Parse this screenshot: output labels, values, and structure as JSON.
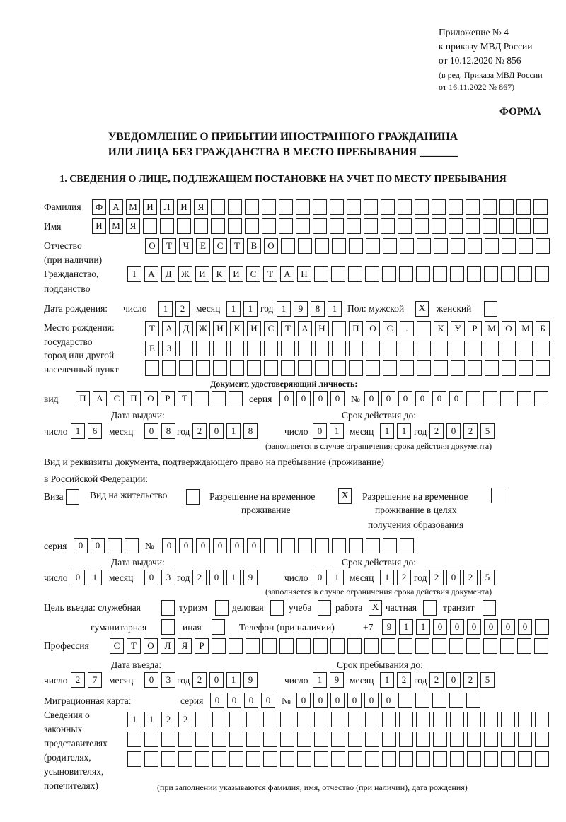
{
  "header": {
    "appendix": "Приложение № 4",
    "order": "к приказу МВД России",
    "order_date": "от 10.12.2020 № 856",
    "revision_1": "(в ред. Приказа МВД России",
    "revision_2": "от 16.11.2022 № 867)",
    "form_label": "ФОРМА",
    "title_1": "УВЕДОМЛЕНИЕ О ПРИБЫТИИ ИНОСТРАННОГО ГРАЖДАНИНА",
    "title_2": "ИЛИ ЛИЦА БЕЗ ГРАЖДАНСТВА В МЕСТО ПРЕБЫВАНИЯ _______",
    "section_1": "1. СВЕДЕНИЯ О ЛИЦЕ, ПОДЛЕЖАЩЕМ ПОСТАНОВКЕ НА УЧЕТ ПО МЕСТУ ПРЕБЫВАНИЯ"
  },
  "labels": {
    "surname": "Фамилия",
    "name": "Имя",
    "patronymic": "Отчество",
    "patronymic_note": "(при наличии)",
    "citizenship": "Гражданство,",
    "citizenship_2": "подданство",
    "birth_date": "Дата рождения:",
    "day": "число",
    "month": "месяц",
    "year": "год",
    "sex": "Пол: мужской",
    "female": "женский",
    "birthplace": "Место рождения:",
    "birthplace_2": "государство",
    "birthplace_3": "город или другой",
    "birthplace_4": "населенный пункт",
    "id_doc": "Документ, удостоверяющий личность:",
    "kind": "вид",
    "series": "серия",
    "number": "№",
    "issue_date": "Дата выдачи:",
    "valid_until": "Срок действия до:",
    "validity_note": "(заполняется в случае ограничения срока действия документа)",
    "right_doc_1": "Вид и реквизиты документа, подтверждающего право на пребывание (проживание)",
    "right_doc_2": "в Российской Федерации:",
    "visa": "Виза",
    "residence_permit": "Вид на жительство",
    "temp_permit_1": "Разрешение на временное",
    "temp_permit_2": "проживание",
    "temp_edu_1": "Разрешение на временное",
    "temp_edu_2": "проживание в целях",
    "temp_edu_3": "получения образования",
    "purpose": "Цель въезда: служебная",
    "tourism": "туризм",
    "business": "деловая",
    "study": "учеба",
    "work": "работа",
    "private": "частная",
    "transit": "транзит",
    "humanitarian": "гуманитарная",
    "other": "иная",
    "phone": "Телефон (при наличии)",
    "phone_prefix": "+7",
    "profession": "Профессия",
    "entry_date": "Дата въезда:",
    "stay_until": "Срок пребывания до:",
    "migration_card": "Миграционная карта:",
    "reps_1": "Сведения о",
    "reps_2": "законных",
    "reps_3": "представителях",
    "reps_4": "(родителях,",
    "reps_5": "усыновителях,",
    "reps_6": "попечителях)",
    "reps_note": "(при заполнении указываются фамилия, имя, отчество (при наличии), дата рождения)"
  },
  "person": {
    "surname": "ФАМИЛИЯ",
    "name": "ИМЯ",
    "patronymic": "ОТЧЕСТВО",
    "citizenship": "ТАДЖИКИСТАН",
    "birth_day": "12",
    "birth_month": "11",
    "birth_year": "1981",
    "sex_male": "X",
    "sex_female": "",
    "birthplace_1": "ТАДЖИКИСТАН ПОС. КУРМОМБ",
    "birthplace_2": "ЕЗ",
    "birthplace_3": ""
  },
  "id_document": {
    "kind": "ПАСПОРТ",
    "series": "0000",
    "number": "000000",
    "issue_day": "16",
    "issue_month": "08",
    "issue_year": "2018",
    "valid_day": "01",
    "valid_month": "11",
    "valid_year": "2025"
  },
  "stay_document": {
    "visa": "",
    "residence_permit": "",
    "temp_permit": "X",
    "temp_edu": "",
    "series": "00",
    "number": "000000",
    "issue_day": "01",
    "issue_month": "03",
    "issue_year": "2019",
    "valid_day": "01",
    "valid_month": "12",
    "valid_year": "2025"
  },
  "purpose": {
    "official": "",
    "tourism": "",
    "business": "",
    "study": "",
    "work": "X",
    "private": "",
    "transit": "",
    "humanitarian": "",
    "other": ""
  },
  "phone": "911000000",
  "profession": "СТОЛЯР",
  "entry": {
    "day": "27",
    "month": "03",
    "year": "2019",
    "until_day": "19",
    "until_month": "12",
    "until_year": "2025"
  },
  "migration_card": {
    "series": "0000",
    "number": "000000"
  },
  "representatives": {
    "row_1": "1122",
    "row_2": "",
    "row_3": ""
  }
}
